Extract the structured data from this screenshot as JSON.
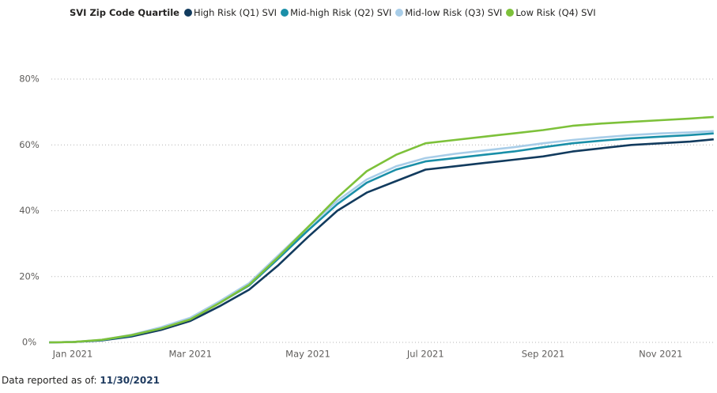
{
  "chart_data": {
    "type": "line",
    "legend_title": "SVI Zip Code Quartile",
    "x": [
      -0.4,
      0,
      0.5,
      1,
      1.5,
      2,
      2.5,
      3,
      3.5,
      4,
      4.5,
      5,
      5.5,
      6,
      6.5,
      7,
      7.5,
      8,
      8.5,
      9,
      9.5,
      10,
      10.5,
      10.9
    ],
    "xlim": [
      -0.43,
      10.93
    ],
    "xticks": [
      {
        "value": 0,
        "label": "Jan 2021"
      },
      {
        "value": 2,
        "label": "Mar 2021"
      },
      {
        "value": 4,
        "label": "May 2021"
      },
      {
        "value": 6,
        "label": "Jul 2021"
      },
      {
        "value": 8,
        "label": "Sep 2021"
      },
      {
        "value": 10,
        "label": "Nov 2021"
      }
    ],
    "ylim": [
      0,
      80
    ],
    "yticks": [
      {
        "value": 0,
        "label": "0%"
      },
      {
        "value": 20,
        "label": "20%"
      },
      {
        "value": 40,
        "label": "40%"
      },
      {
        "value": 60,
        "label": "60%"
      },
      {
        "value": 80,
        "label": "80%"
      }
    ],
    "grid": true,
    "series": [
      {
        "name": "High Risk (Q1) SVI",
        "color": "#123b5e",
        "values": [
          0,
          0.1,
          0.6,
          1.8,
          3.8,
          6.5,
          11,
          16,
          23.5,
          32,
          40,
          45.5,
          49,
          52.5,
          53.5,
          54.5,
          55.5,
          56.5,
          58,
          59,
          60,
          60.5,
          61,
          61.7
        ]
      },
      {
        "name": "Mid-high Risk (Q2) SVI",
        "color": "#1a8fa8",
        "values": [
          0,
          0.1,
          0.7,
          2.1,
          4.3,
          7.2,
          12,
          17.3,
          25.5,
          34,
          42,
          48.5,
          52.5,
          55,
          56,
          57,
          58,
          59.3,
          60.5,
          61.3,
          62,
          62.5,
          63,
          63.5
        ]
      },
      {
        "name": "Mid-low Risk (Q3) SVI",
        "color": "#a8cde8",
        "values": [
          0,
          0.1,
          0.8,
          2.3,
          4.6,
          7.5,
          12.5,
          18,
          26.5,
          35,
          43,
          49.5,
          53.5,
          56,
          57.3,
          58.3,
          59.3,
          60.5,
          61.5,
          62.3,
          63,
          63.5,
          63.8,
          64.2
        ]
      },
      {
        "name": "Low Risk (Q4) SVI",
        "color": "#7dc13a",
        "values": [
          0,
          0.1,
          0.8,
          2.2,
          4.2,
          7,
          12,
          17.5,
          26,
          35,
          44,
          52,
          57,
          60.5,
          61.5,
          62.5,
          63.5,
          64.5,
          65.8,
          66.5,
          67,
          67.5,
          68,
          68.5
        ]
      }
    ]
  },
  "footer": {
    "label": "Data reported as of:",
    "date": "11/30/2021"
  }
}
